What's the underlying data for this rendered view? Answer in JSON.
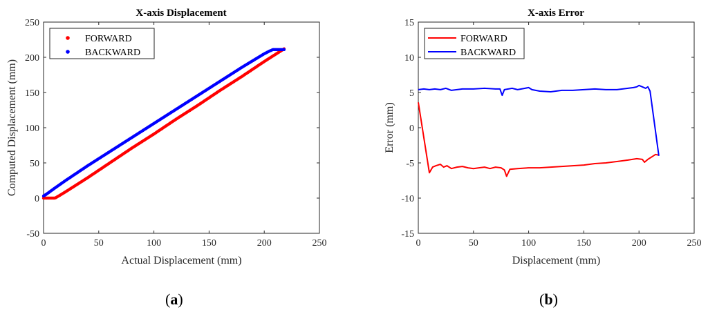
{
  "chart_data": [
    {
      "type": "scatter",
      "title": "X-axis Displacement",
      "xlabel": "Actual Displacement (mm)",
      "ylabel": "Computed Displacement (mm)",
      "xlim": [
        0,
        250
      ],
      "ylim": [
        -50,
        250
      ],
      "xticks": [
        "0",
        "50",
        "100",
        "150",
        "200",
        "250"
      ],
      "yticks": [
        "-50",
        "0",
        "50",
        "100",
        "150",
        "200",
        "250"
      ],
      "grid": false,
      "legend": "top-left",
      "series": [
        {
          "name": "FORWARD",
          "color": "#ff0000",
          "x": [
            0,
            2,
            4,
            6,
            8,
            10,
            11,
            20,
            40,
            60,
            80,
            100,
            120,
            140,
            160,
            180,
            200,
            210,
            214,
            218
          ],
          "y": [
            0,
            0,
            0,
            0,
            0,
            0,
            0.5,
            9,
            29,
            50,
            71,
            91,
            112,
            132,
            153,
            173,
            194,
            204,
            208,
            212
          ]
        },
        {
          "name": "BACKWARD",
          "color": "#0000ff",
          "x": [
            0,
            3,
            10,
            20,
            40,
            60,
            80,
            100,
            120,
            140,
            160,
            180,
            200,
            205,
            208,
            212,
            216,
            218
          ],
          "y": [
            3,
            6,
            14,
            25,
            46,
            66,
            86,
            106,
            126,
            146,
            166,
            186,
            205,
            209,
            211,
            211,
            211,
            211
          ]
        }
      ]
    },
    {
      "type": "line",
      "title": "X-axis Error",
      "xlabel": "Displacement (mm)",
      "ylabel": "Error (mm)",
      "xlim": [
        0,
        250
      ],
      "ylim": [
        -15,
        15
      ],
      "xticks": [
        "0",
        "50",
        "100",
        "150",
        "200",
        "250"
      ],
      "yticks": [
        "-15",
        "-10",
        "-5",
        "0",
        "5",
        "10",
        "15"
      ],
      "grid": false,
      "legend": "top-left",
      "series": [
        {
          "name": "FORWARD",
          "color": "#ff0000",
          "x": [
            0,
            10,
            13,
            16,
            20,
            23,
            26,
            30,
            35,
            40,
            45,
            50,
            55,
            60,
            65,
            70,
            75,
            78,
            80,
            83,
            90,
            100,
            110,
            120,
            130,
            140,
            150,
            160,
            170,
            180,
            190,
            198,
            203,
            205,
            208,
            212,
            215,
            218
          ],
          "y": [
            3.6,
            -6.4,
            -5.6,
            -5.4,
            -5.2,
            -5.6,
            -5.4,
            -5.8,
            -5.6,
            -5.5,
            -5.7,
            -5.8,
            -5.7,
            -5.6,
            -5.8,
            -5.6,
            -5.7,
            -6.0,
            -6.9,
            -5.9,
            -5.8,
            -5.7,
            -5.7,
            -5.6,
            -5.5,
            -5.4,
            -5.3,
            -5.1,
            -5.0,
            -4.8,
            -4.6,
            -4.4,
            -4.5,
            -4.9,
            -4.5,
            -4.1,
            -3.8,
            -3.9
          ]
        },
        {
          "name": "BACKWARD",
          "color": "#0000ff",
          "x": [
            0,
            5,
            10,
            15,
            20,
            25,
            30,
            40,
            50,
            60,
            70,
            74,
            76,
            78,
            85,
            90,
            100,
            103,
            110,
            120,
            130,
            140,
            150,
            160,
            170,
            180,
            190,
            195,
            198,
            200,
            203,
            206,
            208,
            210,
            218
          ],
          "y": [
            5.4,
            5.5,
            5.4,
            5.5,
            5.4,
            5.6,
            5.3,
            5.5,
            5.5,
            5.6,
            5.5,
            5.5,
            4.6,
            5.4,
            5.6,
            5.4,
            5.7,
            5.4,
            5.2,
            5.1,
            5.3,
            5.3,
            5.4,
            5.5,
            5.4,
            5.4,
            5.6,
            5.7,
            5.8,
            6.0,
            5.8,
            5.6,
            5.8,
            5.2,
            -4.0
          ]
        }
      ]
    }
  ],
  "captions": {
    "a": "a",
    "b": "b"
  }
}
